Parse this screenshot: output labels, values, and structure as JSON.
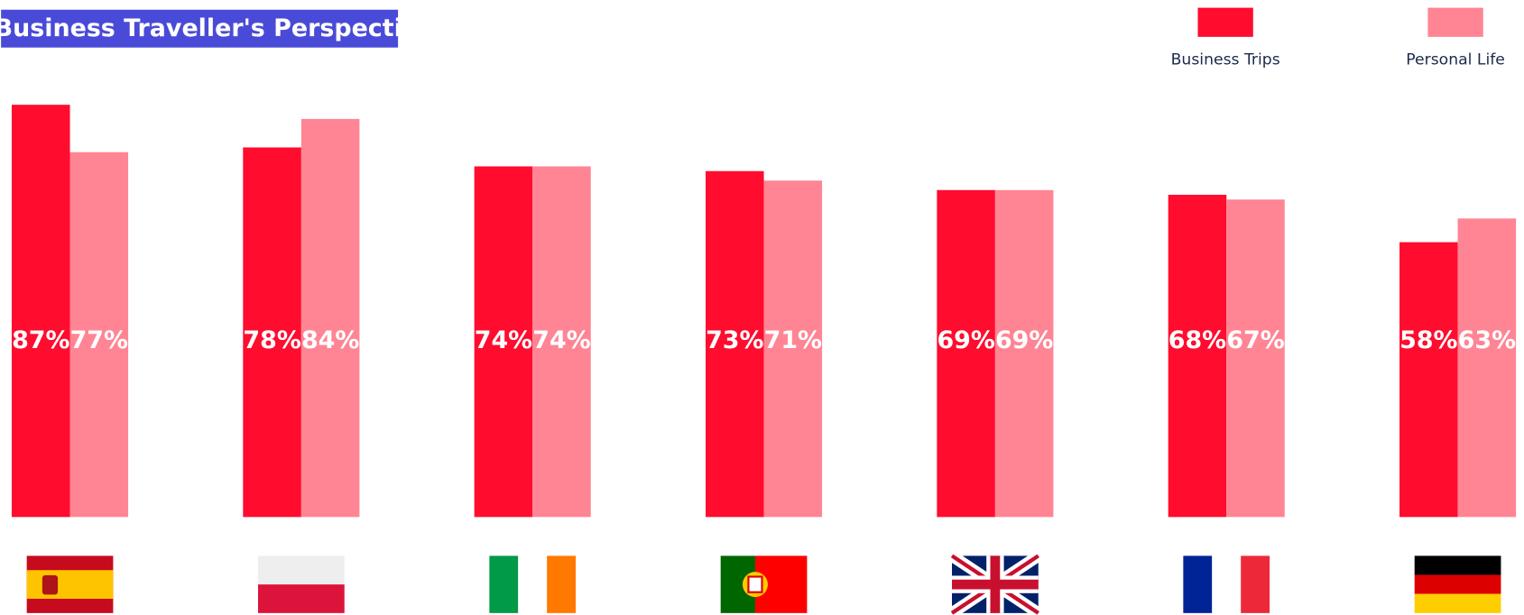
{
  "chart_data": {
    "type": "bar",
    "title": "Business Traveller's Perspective",
    "categories": [
      null,
      null,
      null,
      null,
      null,
      null,
      null
    ],
    "series": [
      {
        "name": "Business Trips",
        "color": "#ff0c2f",
        "values": [
          87,
          78,
          74,
          73,
          69,
          68,
          58
        ],
        "value_labels": [
          "87%",
          "78%",
          "74%",
          "73%",
          "69%",
          "68%",
          "58%"
        ]
      },
      {
        "name": "Personal Life",
        "color": "#ff8594",
        "values": [
          77,
          84,
          74,
          71,
          69,
          67,
          63
        ],
        "value_labels": [
          "77%",
          "84%",
          "74%",
          "71%",
          "69%",
          "67%",
          "63%"
        ]
      }
    ],
    "legend": "top-right"
  }
}
